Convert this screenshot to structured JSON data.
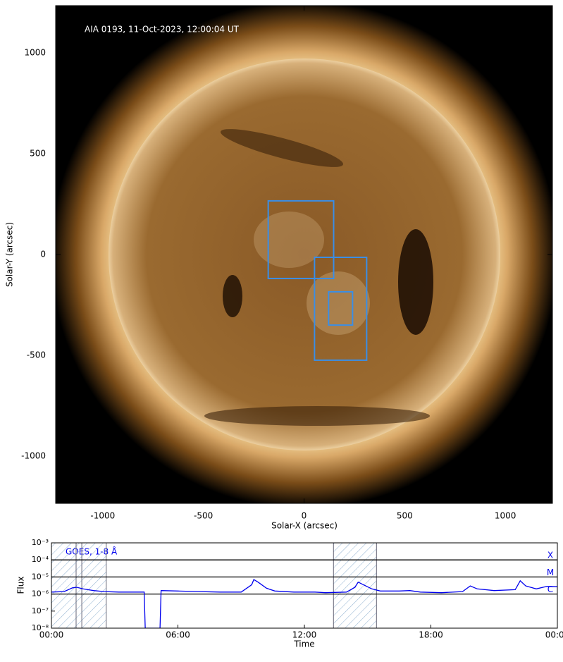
{
  "chart_data": [
    {
      "type": "image",
      "title": "AIA 0193, 11-Oct-2023, 12:00:04 UT",
      "xlabel": "Solar-X (arcsec)",
      "ylabel": "Solar-Y (arcsec)",
      "xlim": [
        -1234,
        1234
      ],
      "ylim": [
        -1234,
        1234
      ],
      "xticks": [
        -1000,
        -500,
        0,
        500,
        1000
      ],
      "yticks": [
        -1000,
        -500,
        0,
        500,
        1000
      ],
      "box_color": "#3a8ee6",
      "boxes": [
        {
          "x": [
            -178,
            147
          ],
          "y": [
            -119,
            266
          ]
        },
        {
          "x": [
            52,
            311
          ],
          "y": [
            -524,
            -14
          ]
        },
        {
          "x": [
            122,
            241
          ],
          "y": [
            -350,
            -185
          ]
        }
      ]
    },
    {
      "type": "line",
      "xlabel": "Time",
      "ylabel": "Flux",
      "annotation": "GOES, 1-8 Å",
      "ylog": true,
      "xlim": [
        0,
        24
      ],
      "ylim": [
        1e-08,
        0.001
      ],
      "xticks": [
        {
          "value": 0,
          "label": "00:00"
        },
        {
          "value": 6,
          "label": "06:00"
        },
        {
          "value": 12,
          "label": "12:00"
        },
        {
          "value": 18,
          "label": "18:00"
        },
        {
          "value": 24,
          "label": "00:00"
        }
      ],
      "yticks": [
        {
          "value": 1e-08,
          "label": "10⁻⁸"
        },
        {
          "value": 1e-07,
          "label": "10⁻⁷"
        },
        {
          "value": 1e-06,
          "label": "10⁻⁶"
        },
        {
          "value": 1e-05,
          "label": "10⁻⁵"
        },
        {
          "value": 0.0001,
          "label": "10⁻⁴"
        },
        {
          "value": 0.001,
          "label": "10⁻³"
        }
      ],
      "levels": [
        {
          "value": 0.0001,
          "label": "X"
        },
        {
          "value": 1e-05,
          "label": "M"
        },
        {
          "value": 1e-06,
          "label": "C"
        }
      ],
      "shaded": [
        [
          0,
          2.6
        ],
        [
          13.38,
          15.42
        ]
      ],
      "vlines": [
        1.17,
        1.44
      ],
      "series": [
        {
          "name": "GOES, 1-8 Å",
          "color": "#0000ee",
          "x": [
            0,
            0.6,
            1.0,
            1.2,
            1.5,
            2.0,
            2.5,
            3.2,
            4.0,
            4.4,
            4.45,
            5.15,
            5.2,
            6.0,
            7.0,
            8.0,
            9.0,
            9.5,
            9.6,
            9.8,
            10.2,
            10.6,
            11.5,
            12.5,
            13.0,
            14.0,
            14.4,
            14.55,
            14.8,
            15.2,
            15.6,
            16.5,
            17.0,
            17.5,
            18.5,
            19.5,
            19.87,
            20.2,
            21.0,
            22.0,
            22.24,
            22.5,
            23.0,
            23.5,
            24
          ],
          "values": [
            1.3e-06,
            1.4e-06,
            2.3e-06,
            2.5e-06,
            2e-06,
            1.6e-06,
            1.4e-06,
            1.3e-06,
            1.3e-06,
            1.3e-06,
            1e-08,
            1e-08,
            1.6e-06,
            1.5e-06,
            1.4e-06,
            1.3e-06,
            1.3e-06,
            3.5e-06,
            7e-06,
            5e-06,
            2.2e-06,
            1.5e-06,
            1.3e-06,
            1.3e-06,
            1.2e-06,
            1.3e-06,
            2.5e-06,
            5e-06,
            3.5e-06,
            2e-06,
            1.5e-06,
            1.5e-06,
            1.6e-06,
            1.3e-06,
            1.2e-06,
            1.4e-06,
            3e-06,
            2e-06,
            1.6e-06,
            1.8e-06,
            6e-06,
            3e-06,
            2e-06,
            2.8e-06,
            2.7e-06
          ]
        }
      ]
    }
  ]
}
